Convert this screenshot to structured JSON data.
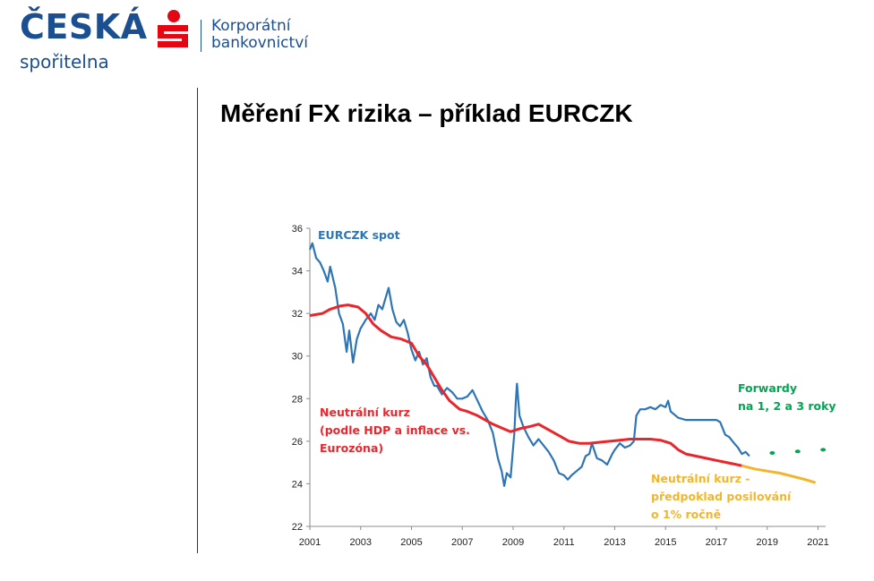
{
  "header": {
    "brand_name": "ČESKÁ",
    "brand_sub": "spořitelna",
    "corp_line1": "Korporátní",
    "corp_line2": "bankovnictví",
    "brand_color": "#1b4f8f",
    "logo_red": "#e30613"
  },
  "slide": {
    "title": "Měření FX rizika – příklad EURCZK"
  },
  "chart_data": {
    "type": "line",
    "xlim": [
      2001,
      2021.3
    ],
    "ylim": [
      22,
      36
    ],
    "x_ticks": [
      "2001",
      "2003",
      "2005",
      "2007",
      "2009",
      "2011",
      "2013",
      "2015",
      "2017",
      "2019",
      "2021"
    ],
    "y_ticks": [
      "22",
      "24",
      "26",
      "28",
      "30",
      "32",
      "34",
      "36"
    ],
    "grid": false,
    "annotations": [
      {
        "id": "spot",
        "lines": [
          "EURCZK spot"
        ],
        "color": "#2e75b6"
      },
      {
        "id": "neutral",
        "lines": [
          "Neutrální kurz",
          "(podle HDP a inflace vs.",
          "Eurozóna)"
        ],
        "color": "#e8262c"
      },
      {
        "id": "forward",
        "lines": [
          "Forwardy",
          "na 1, 2 a 3 roky"
        ],
        "color": "#00a651"
      },
      {
        "id": "neutral_proj",
        "lines": [
          "Neutrální kurz -",
          "předpoklad posilování",
          "o 1% ročně"
        ],
        "color": "#f2b52d"
      }
    ],
    "series": [
      {
        "id": "spot",
        "color": "#2e75b6",
        "points": [
          [
            2001.0,
            35.0
          ],
          [
            2001.1,
            35.3
          ],
          [
            2001.25,
            34.6
          ],
          [
            2001.4,
            34.4
          ],
          [
            2001.55,
            34.0
          ],
          [
            2001.7,
            33.5
          ],
          [
            2001.8,
            34.2
          ],
          [
            2002.0,
            33.2
          ],
          [
            2002.15,
            32.0
          ],
          [
            2002.3,
            31.5
          ],
          [
            2002.45,
            30.2
          ],
          [
            2002.55,
            31.2
          ],
          [
            2002.7,
            29.7
          ],
          [
            2002.85,
            30.8
          ],
          [
            2003.0,
            31.3
          ],
          [
            2003.2,
            31.7
          ],
          [
            2003.4,
            32.0
          ],
          [
            2003.55,
            31.7
          ],
          [
            2003.7,
            32.4
          ],
          [
            2003.85,
            32.2
          ],
          [
            2004.0,
            32.8
          ],
          [
            2004.1,
            33.2
          ],
          [
            2004.25,
            32.2
          ],
          [
            2004.4,
            31.6
          ],
          [
            2004.55,
            31.4
          ],
          [
            2004.7,
            31.7
          ],
          [
            2004.85,
            31.1
          ],
          [
            2005.0,
            30.3
          ],
          [
            2005.15,
            29.8
          ],
          [
            2005.3,
            30.2
          ],
          [
            2005.45,
            29.6
          ],
          [
            2005.6,
            29.9
          ],
          [
            2005.75,
            29.0
          ],
          [
            2005.9,
            28.6
          ],
          [
            2006.0,
            28.6
          ],
          [
            2006.2,
            28.2
          ],
          [
            2006.4,
            28.5
          ],
          [
            2006.6,
            28.3
          ],
          [
            2006.8,
            28.0
          ],
          [
            2007.0,
            28.0
          ],
          [
            2007.2,
            28.1
          ],
          [
            2007.4,
            28.4
          ],
          [
            2007.6,
            27.9
          ],
          [
            2007.8,
            27.4
          ],
          [
            2008.0,
            27.0
          ],
          [
            2008.2,
            26.4
          ],
          [
            2008.4,
            25.2
          ],
          [
            2008.55,
            24.6
          ],
          [
            2008.65,
            23.9
          ],
          [
            2008.75,
            24.5
          ],
          [
            2008.9,
            24.3
          ],
          [
            2009.05,
            26.4
          ],
          [
            2009.1,
            27.7
          ],
          [
            2009.15,
            28.7
          ],
          [
            2009.25,
            27.2
          ],
          [
            2009.4,
            26.7
          ],
          [
            2009.6,
            26.2
          ],
          [
            2009.8,
            25.8
          ],
          [
            2010.0,
            26.1
          ],
          [
            2010.2,
            25.8
          ],
          [
            2010.4,
            25.5
          ],
          [
            2010.6,
            25.1
          ],
          [
            2010.8,
            24.5
          ],
          [
            2011.0,
            24.4
          ],
          [
            2011.15,
            24.2
          ],
          [
            2011.3,
            24.4
          ],
          [
            2011.5,
            24.6
          ],
          [
            2011.7,
            24.8
          ],
          [
            2011.85,
            25.3
          ],
          [
            2012.0,
            25.4
          ],
          [
            2012.1,
            25.9
          ],
          [
            2012.3,
            25.2
          ],
          [
            2012.5,
            25.1
          ],
          [
            2012.7,
            24.9
          ],
          [
            2012.9,
            25.4
          ],
          [
            2013.0,
            25.6
          ],
          [
            2013.2,
            25.9
          ],
          [
            2013.4,
            25.7
          ],
          [
            2013.6,
            25.8
          ],
          [
            2013.75,
            26.0
          ],
          [
            2013.85,
            27.2
          ],
          [
            2014.0,
            27.5
          ],
          [
            2014.2,
            27.5
          ],
          [
            2014.4,
            27.6
          ],
          [
            2014.6,
            27.5
          ],
          [
            2014.8,
            27.7
          ],
          [
            2015.0,
            27.6
          ],
          [
            2015.1,
            27.9
          ],
          [
            2015.2,
            27.4
          ],
          [
            2015.5,
            27.1
          ],
          [
            2015.8,
            27.0
          ],
          [
            2016.0,
            27.0
          ],
          [
            2016.5,
            27.0
          ],
          [
            2017.0,
            27.0
          ],
          [
            2017.15,
            26.9
          ],
          [
            2017.35,
            26.3
          ],
          [
            2017.5,
            26.2
          ],
          [
            2017.7,
            25.9
          ],
          [
            2017.85,
            25.7
          ],
          [
            2018.0,
            25.4
          ],
          [
            2018.15,
            25.5
          ],
          [
            2018.3,
            25.3
          ]
        ]
      },
      {
        "id": "neutral",
        "color": "#e8262c",
        "points": [
          [
            2001.0,
            31.9
          ],
          [
            2001.5,
            32.0
          ],
          [
            2001.8,
            32.2
          ],
          [
            2002.2,
            32.35
          ],
          [
            2002.5,
            32.4
          ],
          [
            2002.9,
            32.3
          ],
          [
            2003.2,
            32.0
          ],
          [
            2003.5,
            31.5
          ],
          [
            2003.8,
            31.2
          ],
          [
            2004.2,
            30.9
          ],
          [
            2004.6,
            30.8
          ],
          [
            2005.0,
            30.6
          ],
          [
            2005.3,
            30.0
          ],
          [
            2005.6,
            29.6
          ],
          [
            2005.9,
            29.0
          ],
          [
            2006.2,
            28.4
          ],
          [
            2006.5,
            27.9
          ],
          [
            2006.9,
            27.5
          ],
          [
            2007.2,
            27.4
          ],
          [
            2007.6,
            27.2
          ],
          [
            2007.9,
            27.0
          ],
          [
            2008.2,
            26.8
          ],
          [
            2008.6,
            26.6
          ],
          [
            2008.9,
            26.45
          ],
          [
            2009.3,
            26.6
          ],
          [
            2009.7,
            26.7
          ],
          [
            2010.0,
            26.8
          ],
          [
            2010.3,
            26.6
          ],
          [
            2010.6,
            26.4
          ],
          [
            2010.9,
            26.2
          ],
          [
            2011.2,
            26.0
          ],
          [
            2011.6,
            25.9
          ],
          [
            2012.0,
            25.9
          ],
          [
            2012.4,
            25.95
          ],
          [
            2012.8,
            26.0
          ],
          [
            2013.2,
            26.05
          ],
          [
            2013.6,
            26.1
          ],
          [
            2014.0,
            26.1
          ],
          [
            2014.4,
            26.1
          ],
          [
            2014.8,
            26.05
          ],
          [
            2015.2,
            25.9
          ],
          [
            2015.5,
            25.6
          ],
          [
            2015.8,
            25.4
          ],
          [
            2016.2,
            25.3
          ],
          [
            2016.6,
            25.2
          ],
          [
            2017.0,
            25.1
          ],
          [
            2017.4,
            25.0
          ],
          [
            2017.8,
            24.9
          ],
          [
            2018.0,
            24.85
          ]
        ]
      },
      {
        "id": "neutral_proj",
        "color": "#f2b52d",
        "points": [
          [
            2018.0,
            24.85
          ],
          [
            2018.5,
            24.7
          ],
          [
            2019.0,
            24.6
          ],
          [
            2019.5,
            24.5
          ],
          [
            2020.0,
            24.35
          ],
          [
            2020.5,
            24.2
          ],
          [
            2020.9,
            24.05
          ]
        ]
      },
      {
        "id": "forward",
        "color": "#00a651",
        "type": "scatter",
        "points": [
          [
            2019.2,
            25.45
          ],
          [
            2020.2,
            25.52
          ],
          [
            2021.2,
            25.6
          ]
        ]
      }
    ]
  }
}
